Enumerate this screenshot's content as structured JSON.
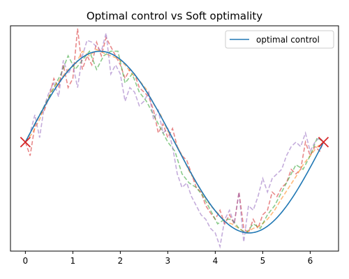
{
  "chart_data": {
    "type": "line",
    "title": "Optimal control vs Soft optimality",
    "xlabel": "",
    "ylabel": "",
    "xlim": [
      -0.314,
      6.597
    ],
    "ylim": [
      -1.2,
      1.28
    ],
    "x_ticks": [
      0,
      1,
      2,
      3,
      4,
      5,
      6
    ],
    "y_ticks": [],
    "grid": false,
    "legend": {
      "placement": "top-right",
      "entries": [
        "optimal control"
      ]
    },
    "series": [
      {
        "name": "optimal control",
        "style": "solid",
        "color": "#1f77b4",
        "function": "sin(x)",
        "x_range": [
          0,
          6.2832
        ]
      },
      {
        "style": "dashed",
        "color": "#d62728",
        "x": [
          0,
          0.1,
          0.2,
          0.3,
          0.4,
          0.5,
          0.6,
          0.7,
          0.8,
          0.9,
          1.0,
          1.1,
          1.2,
          1.3,
          1.4,
          1.5,
          1.6,
          1.7,
          1.8,
          1.9,
          2.0,
          2.1,
          2.2,
          2.3,
          2.4,
          2.5,
          2.6,
          2.7,
          2.8,
          2.9,
          3.0,
          3.1,
          3.2,
          3.3,
          3.4,
          3.5,
          3.6,
          3.7,
          3.8,
          3.9,
          4.0,
          4.1,
          4.2,
          4.3,
          4.4,
          4.5,
          4.6,
          4.7,
          4.8,
          4.9,
          5.0,
          5.1,
          5.2,
          5.3,
          5.4,
          5.5,
          5.6,
          5.7,
          5.8,
          5.9,
          6.0,
          6.1,
          6.2,
          6.28
        ],
        "values": [
          0.0,
          -0.15,
          0.18,
          0.3,
          0.35,
          0.5,
          0.7,
          0.6,
          0.85,
          0.6,
          0.7,
          1.25,
          0.8,
          0.95,
          0.85,
          1.1,
          0.95,
          1.15,
          1.05,
          0.95,
          0.85,
          0.7,
          0.8,
          0.75,
          0.6,
          0.55,
          0.5,
          0.35,
          0.1,
          0.2,
          0.05,
          0.15,
          -0.05,
          -0.15,
          -0.2,
          -0.35,
          -0.5,
          -0.55,
          -0.7,
          -0.78,
          -0.85,
          -0.75,
          -0.9,
          -0.8,
          -0.9,
          -0.55,
          -0.95,
          -1.0,
          -0.85,
          -0.95,
          -0.8,
          -0.75,
          -0.55,
          -0.6,
          -0.5,
          -0.45,
          -0.3,
          -0.35,
          -0.3,
          0.0,
          -0.15,
          -0.05,
          -0.1,
          0.0
        ]
      },
      {
        "style": "dashed",
        "color": "#ff7f0e",
        "x": [
          0,
          0.15,
          0.3,
          0.45,
          0.6,
          0.75,
          0.9,
          1.05,
          1.2,
          1.35,
          1.5,
          1.65,
          1.8,
          1.95,
          2.1,
          2.25,
          2.4,
          2.55,
          2.7,
          2.85,
          3.0,
          3.15,
          3.3,
          3.45,
          3.6,
          3.75,
          3.9,
          4.05,
          4.2,
          4.35,
          4.5,
          4.65,
          4.8,
          4.95,
          5.1,
          5.25,
          5.4,
          5.55,
          5.7,
          5.85,
          6.0,
          6.15,
          6.28
        ],
        "values": [
          0.0,
          0.1,
          0.25,
          0.45,
          0.6,
          0.7,
          0.8,
          0.85,
          1.0,
          0.95,
          1.02,
          0.98,
          0.95,
          0.92,
          0.85,
          0.75,
          0.68,
          0.58,
          0.42,
          0.3,
          0.12,
          0.0,
          -0.15,
          -0.32,
          -0.45,
          -0.58,
          -0.7,
          -0.78,
          -0.88,
          -0.9,
          -0.95,
          -1.0,
          -0.95,
          -0.92,
          -0.85,
          -0.75,
          -0.62,
          -0.5,
          -0.38,
          -0.25,
          -0.15,
          -0.05,
          0.0
        ]
      },
      {
        "style": "dashed",
        "color": "#2ca02c",
        "x": [
          0,
          0.15,
          0.3,
          0.45,
          0.6,
          0.75,
          0.9,
          1.05,
          1.2,
          1.35,
          1.5,
          1.65,
          1.8,
          1.95,
          2.1,
          2.25,
          2.4,
          2.55,
          2.7,
          2.85,
          3.0,
          3.15,
          3.3,
          3.45,
          3.6,
          3.75,
          3.9,
          4.05,
          4.2,
          4.35,
          4.5,
          4.65,
          4.8,
          4.95,
          5.1,
          5.25,
          5.4,
          5.55,
          5.7,
          5.85,
          6.0,
          6.15,
          6.28
        ],
        "values": [
          0.0,
          0.15,
          0.3,
          0.45,
          0.6,
          0.75,
          0.95,
          0.8,
          0.9,
          1.0,
          0.8,
          0.95,
          1.0,
          1.0,
          0.65,
          0.75,
          0.55,
          0.45,
          0.3,
          0.15,
          0.0,
          -0.1,
          -0.35,
          -0.45,
          -0.5,
          -0.6,
          -0.75,
          -0.9,
          -0.85,
          -0.85,
          -0.95,
          -1.0,
          -0.9,
          -0.95,
          -0.8,
          -0.7,
          -0.55,
          -0.4,
          -0.25,
          -0.3,
          -0.15,
          0.05,
          0.0
        ]
      },
      {
        "style": "dashed",
        "color": "#9467bd",
        "x": [
          0,
          0.1,
          0.2,
          0.3,
          0.4,
          0.5,
          0.6,
          0.7,
          0.8,
          0.9,
          1.0,
          1.1,
          1.2,
          1.3,
          1.4,
          1.5,
          1.6,
          1.7,
          1.8,
          1.9,
          2.0,
          2.1,
          2.2,
          2.3,
          2.4,
          2.5,
          2.6,
          2.7,
          2.8,
          2.9,
          3.0,
          3.1,
          3.2,
          3.3,
          3.4,
          3.5,
          3.6,
          3.7,
          3.8,
          3.9,
          4.0,
          4.1,
          4.2,
          4.3,
          4.4,
          4.5,
          4.6,
          4.7,
          4.8,
          4.9,
          5.0,
          5.1,
          5.2,
          5.3,
          5.4,
          5.5,
          5.6,
          5.7,
          5.8,
          5.9,
          6.0,
          6.1,
          6.2,
          6.28
        ],
        "values": [
          0.0,
          0.1,
          0.3,
          0.05,
          0.4,
          0.55,
          0.65,
          0.5,
          0.9,
          0.75,
          0.85,
          0.6,
          0.95,
          1.12,
          1.1,
          1.05,
          1.0,
          1.2,
          0.75,
          0.85,
          0.75,
          0.45,
          0.6,
          0.55,
          0.4,
          0.45,
          0.55,
          0.25,
          0.35,
          0.1,
          0.15,
          -0.05,
          -0.35,
          -0.5,
          -0.45,
          -0.6,
          -0.7,
          -0.8,
          -0.85,
          -0.95,
          -1.0,
          -1.15,
          -0.85,
          -0.75,
          -0.9,
          -0.55,
          -1.1,
          -0.7,
          -0.75,
          -0.6,
          -0.4,
          -0.55,
          -0.4,
          -0.35,
          -0.3,
          -0.15,
          -0.05,
          0.0,
          -0.05,
          0.1,
          -0.1,
          0.0,
          0.05,
          0.0
        ]
      }
    ],
    "markers": {
      "type": "x",
      "color": "#d62728",
      "points": [
        {
          "x": 0,
          "y": 0
        },
        {
          "x": 6.28,
          "y": 0
        }
      ]
    }
  }
}
